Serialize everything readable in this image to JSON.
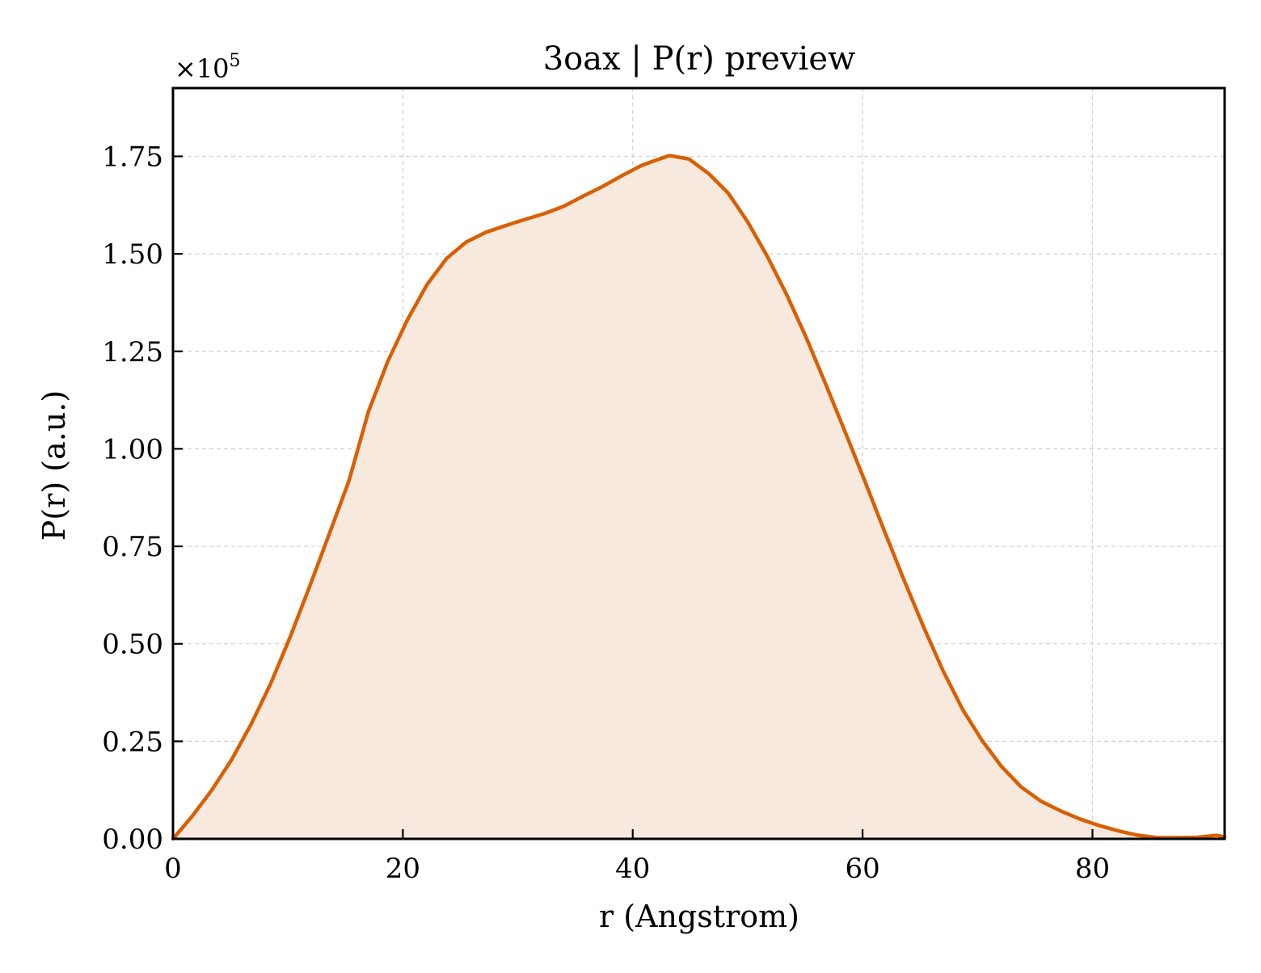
{
  "chart_data": {
    "type": "area",
    "title": "3oax | P(r) preview",
    "xlabel": "r (Angstrom)",
    "ylabel": "P(r) (a.u.)",
    "y_multiplier_label": "×10",
    "y_multiplier_exponent": "5",
    "xlim": [
      0,
      91.5
    ],
    "ylim": [
      0,
      1.925
    ],
    "y_scale_factor": 100000,
    "x_ticks": [
      0,
      20,
      40,
      60,
      80
    ],
    "x_tick_labels": [
      "0",
      "20",
      "40",
      "60",
      "80"
    ],
    "y_ticks": [
      0,
      0.25,
      0.5,
      0.75,
      1.0,
      1.25,
      1.5,
      1.75
    ],
    "y_tick_labels": [
      "0.00",
      "0.25",
      "0.50",
      "0.75",
      "1.00",
      "1.25",
      "1.50",
      "1.75"
    ],
    "grid": true,
    "line_color": "#d95f02",
    "fill_color": "#f8e9df",
    "series": [
      {
        "x": [
          0,
          1.7,
          3.4,
          5.1,
          6.8,
          8.5,
          10.2,
          11.9,
          13.6,
          15.3,
          17.0,
          18.7,
          20.4,
          22.1,
          23.8,
          25.5,
          27.2,
          28.9,
          30.6,
          32.3,
          34.0,
          35.7,
          37.4,
          39.1,
          40.8,
          42.5,
          43.2,
          44.9,
          46.6,
          48.3,
          50.0,
          51.7,
          53.4,
          55.1,
          56.8,
          58.5,
          60.2,
          61.9,
          63.6,
          65.3,
          67.0,
          68.7,
          70.4,
          72.1,
          73.8,
          75.5,
          77.2,
          78.9,
          80.6,
          82.3,
          84.0,
          85.7,
          87.4,
          89.1,
          90.8,
          91.5
        ],
        "y": [
          0.0,
          0.059,
          0.126,
          0.203,
          0.294,
          0.398,
          0.518,
          0.648,
          0.782,
          0.917,
          1.095,
          1.225,
          1.331,
          1.421,
          1.488,
          1.53,
          1.555,
          1.572,
          1.588,
          1.603,
          1.622,
          1.648,
          1.673,
          1.701,
          1.727,
          1.745,
          1.752,
          1.743,
          1.706,
          1.656,
          1.582,
          1.494,
          1.395,
          1.285,
          1.165,
          1.042,
          0.917,
          0.789,
          0.664,
          0.544,
          0.431,
          0.332,
          0.252,
          0.185,
          0.133,
          0.097,
          0.072,
          0.051,
          0.034,
          0.02,
          0.009,
          0.003,
          0.003,
          0.004,
          0.009,
          0.005
        ]
      }
    ]
  }
}
